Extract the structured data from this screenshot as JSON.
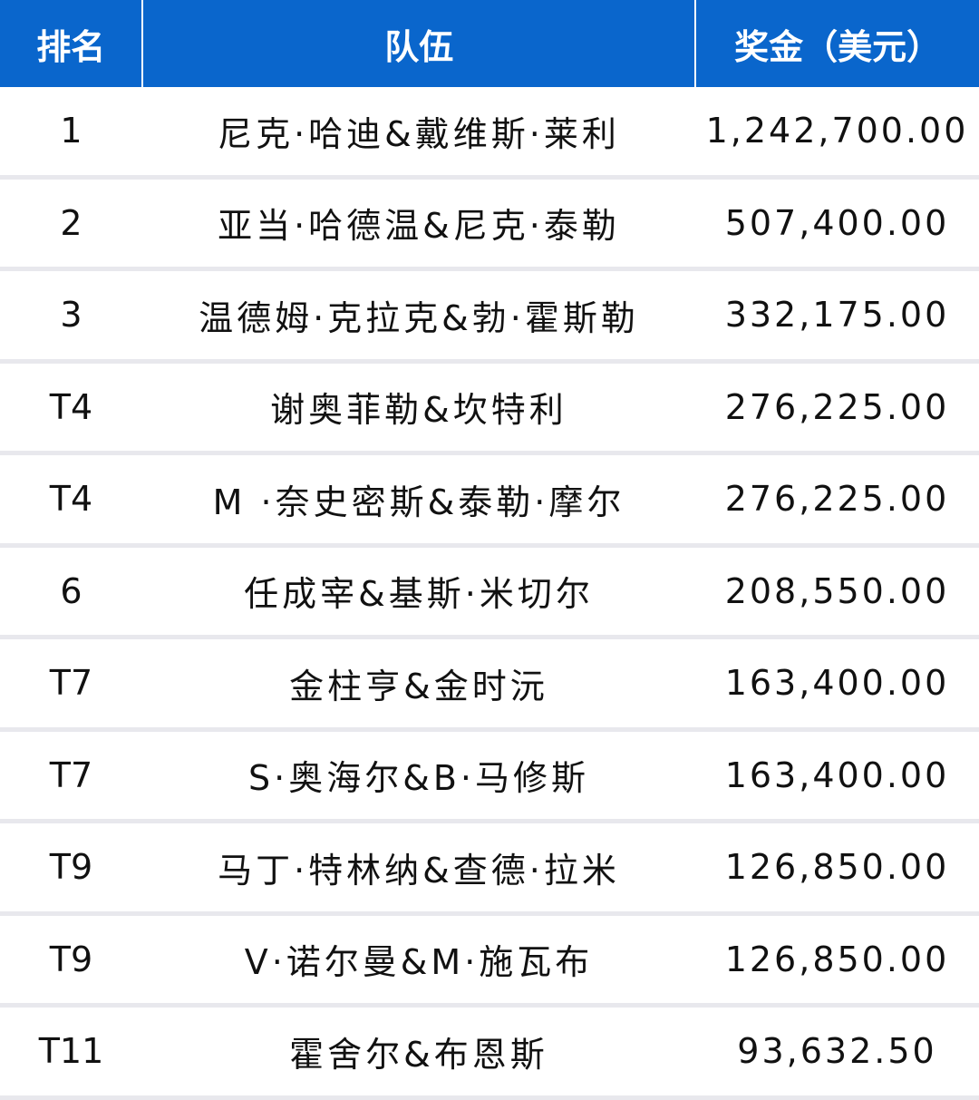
{
  "header": {
    "rank": "排名",
    "team": "队伍",
    "prize": "奖金（美元）"
  },
  "rows": [
    {
      "rank": "1",
      "team": "尼克·哈迪&戴维斯·莱利",
      "prize": "1,242,700.00"
    },
    {
      "rank": "2",
      "team": "亚当·哈德温&尼克·泰勒",
      "prize": "507,400.00"
    },
    {
      "rank": "3",
      "team": "温德姆·克拉克&勃·霍斯勒",
      "prize": "332,175.00"
    },
    {
      "rank": "T4",
      "team": "谢奥菲勒&坎特利",
      "prize": "276,225.00"
    },
    {
      "rank": "T4",
      "team": "M ·奈史密斯&泰勒·摩尔",
      "prize": "276,225.00"
    },
    {
      "rank": "6",
      "team": "任成宰&基斯·米切尔",
      "prize": "208,550.00"
    },
    {
      "rank": "T7",
      "team": "金柱亨&金时沅",
      "prize": "163,400.00"
    },
    {
      "rank": "T7",
      "team": "S·奥海尔&B·马修斯",
      "prize": "163,400.00"
    },
    {
      "rank": "T9",
      "team": "马丁·特林纳&查德·拉米",
      "prize": "126,850.00"
    },
    {
      "rank": "T9",
      "team": "V·诺尔曼&M·施瓦布",
      "prize": "126,850.00"
    },
    {
      "rank": "T11",
      "team": "霍舍尔&布恩斯",
      "prize": "93,632.50"
    }
  ],
  "colors": {
    "header_bg": "#0a66cc",
    "header_text": "#ffffff",
    "row_separator": "#e8e8ed"
  }
}
